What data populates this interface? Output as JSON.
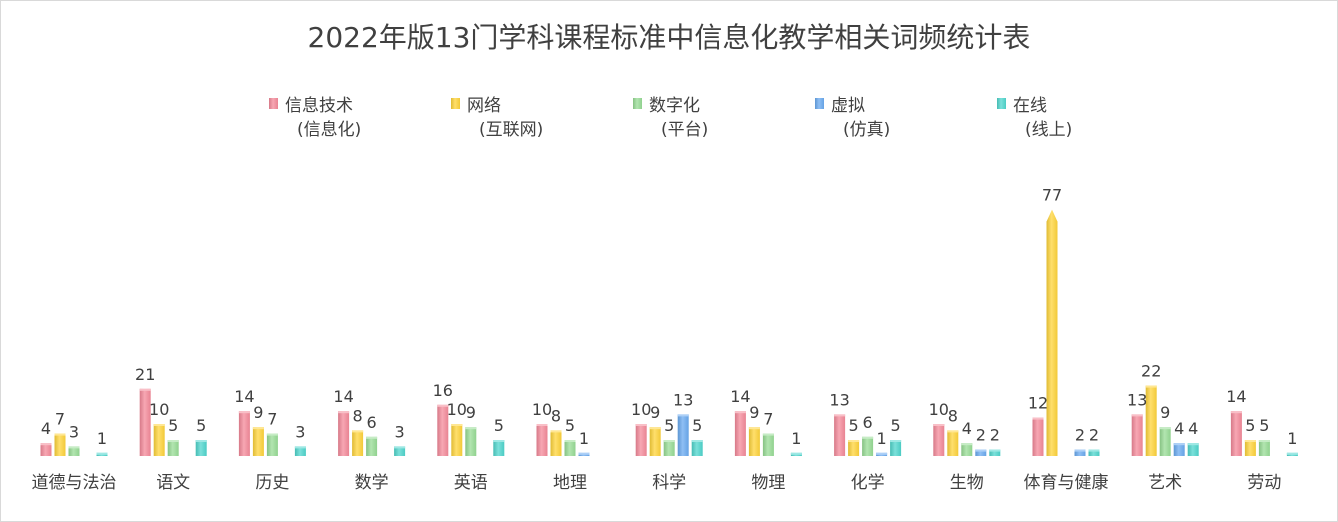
{
  "chart_data": {
    "type": "bar",
    "title": "2022年版13门学科课程标准中信息化教学相关词频统计表",
    "categories": [
      "道德与法治",
      "语文",
      "历史",
      "数学",
      "英语",
      "地理",
      "科学",
      "物理",
      "化学",
      "生物",
      "体育与健康",
      "艺术",
      "劳动"
    ],
    "series": [
      {
        "name": "信息技术 (信息化)",
        "label_line1": "信息技术",
        "label_line2": "(信息化)",
        "color": "#f48a9a",
        "values": [
          4,
          21,
          14,
          14,
          16,
          10,
          10,
          14,
          13,
          10,
          12,
          13,
          14
        ]
      },
      {
        "name": "网络 (互联网)",
        "label_line1": "网络",
        "label_line2": "(互联网)",
        "color": "#ffd43b",
        "values": [
          7,
          10,
          9,
          8,
          10,
          8,
          9,
          9,
          5,
          8,
          77,
          22,
          5
        ]
      },
      {
        "name": "数字化 (平台)",
        "label_line1": "数字化",
        "label_line2": "(平台)",
        "color": "#98dc95",
        "values": [
          3,
          5,
          7,
          6,
          9,
          5,
          5,
          7,
          6,
          4,
          null,
          9,
          5
        ]
      },
      {
        "name": "虚拟 (仿真)",
        "label_line1": "虚拟",
        "label_line2": "(仿真)",
        "color": "#6aaaf0",
        "values": [
          null,
          null,
          null,
          null,
          null,
          1,
          13,
          null,
          1,
          2,
          2,
          4,
          null
        ]
      },
      {
        "name": "在线 (线上)",
        "label_line1": "在线",
        "label_line2": "(线上)",
        "color": "#4fd6cd",
        "values": [
          1,
          5,
          3,
          3,
          5,
          null,
          5,
          1,
          5,
          2,
          2,
          4,
          1
        ]
      }
    ],
    "legend_position": "top",
    "grid": false
  }
}
